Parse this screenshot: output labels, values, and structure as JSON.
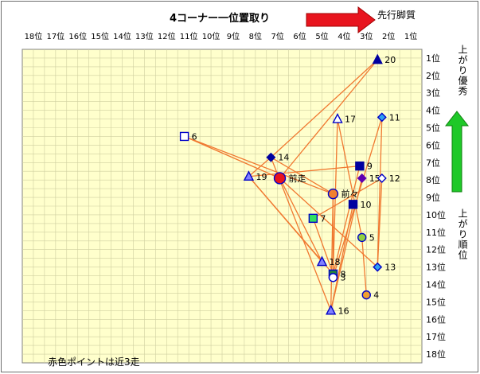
{
  "chart_data": {
    "type": "scatter",
    "title": "4コーナー一位置取り",
    "xlabel": "先行脚質",
    "ylabel_top": "上がり優秀",
    "ylabel_bottom": "上がり順位",
    "note": "赤色ポイントは近3走",
    "x_ticks": [
      "18位",
      "17位",
      "16位",
      "15位",
      "14位",
      "13位",
      "12位",
      "11位",
      "10位",
      "9位",
      "8位",
      "7位",
      "6位",
      "5位",
      "4位",
      "3位",
      "2位",
      "1位"
    ],
    "y_ticks": [
      "1位",
      "2位",
      "3位",
      "4位",
      "5位",
      "6位",
      "7位",
      "8位",
      "9位",
      "10位",
      "11位",
      "12位",
      "13位",
      "14位",
      "15位",
      "16位",
      "17位",
      "18位"
    ],
    "xlim": [
      18.5,
      0.5
    ],
    "ylim": [
      0.5,
      18.5
    ],
    "colors": {
      "plot_bg": "#ffffcc",
      "grid": "#cfcfa0",
      "line": "#f07830",
      "arrow_red": "#e8141e",
      "arrow_green": "#1ec828"
    },
    "points": [
      {
        "label": "前走",
        "x": 6.9,
        "y": 7.9,
        "marker": "circle",
        "fill": "#e8141e",
        "stroke": "#0000c8",
        "r": 7
      },
      {
        "label": "前々",
        "x": 4.5,
        "y": 8.8,
        "marker": "circle",
        "fill": "#f08030",
        "stroke": "#0000c8",
        "r": 6
      },
      {
        "label": "20",
        "x": 2.5,
        "y": 1.1,
        "marker": "triangle",
        "fill": "#0000a0",
        "stroke": "#0000a0"
      },
      {
        "label": "11",
        "x": 2.3,
        "y": 4.4,
        "marker": "diamond",
        "fill": "#30a0f0",
        "stroke": "#0000c8"
      },
      {
        "label": "17",
        "x": 4.3,
        "y": 4.5,
        "marker": "triangle",
        "fill": "#ffffff",
        "stroke": "#0000c8"
      },
      {
        "label": "6",
        "x": 11.2,
        "y": 5.5,
        "marker": "square",
        "fill": "#ffffff",
        "stroke": "#0000c8"
      },
      {
        "label": "14",
        "x": 7.3,
        "y": 6.7,
        "marker": "diamond",
        "fill": "#0000a0",
        "stroke": "#0000a0"
      },
      {
        "label": "9",
        "x": 3.3,
        "y": 7.2,
        "marker": "square",
        "fill": "#0000a0",
        "stroke": "#0000a0"
      },
      {
        "label": "19",
        "x": 8.3,
        "y": 7.8,
        "marker": "triangle",
        "fill": "#8080ff",
        "stroke": "#0000c8"
      },
      {
        "label": "15",
        "x": 3.2,
        "y": 7.9,
        "marker": "diamond",
        "fill": "#6000b0",
        "stroke": "#6000b0"
      },
      {
        "label": "12",
        "x": 2.3,
        "y": 7.9,
        "marker": "diamond",
        "fill": "#ffffff",
        "stroke": "#0000c8"
      },
      {
        "label": "10",
        "x": 3.6,
        "y": 9.4,
        "marker": "square",
        "fill": "#0000a0",
        "stroke": "#0000a0"
      },
      {
        "label": "7",
        "x": 5.4,
        "y": 10.2,
        "marker": "square",
        "fill": "#30e060",
        "stroke": "#0000c8"
      },
      {
        "label": "5",
        "x": 3.2,
        "y": 11.3,
        "marker": "circle",
        "fill": "#90d040",
        "stroke": "#0000c8",
        "r": 5
      },
      {
        "label": "18",
        "x": 5.0,
        "y": 12.7,
        "marker": "triangle",
        "fill": "#8080ff",
        "stroke": "#0000c8"
      },
      {
        "label": "13",
        "x": 2.5,
        "y": 13.0,
        "marker": "diamond",
        "fill": "#30a0f0",
        "stroke": "#0000c8"
      },
      {
        "label": "8",
        "x": 4.5,
        "y": 13.4,
        "marker": "square",
        "fill": "#208040",
        "stroke": "#0000c8"
      },
      {
        "label": "3",
        "x": 4.5,
        "y": 13.6,
        "marker": "circle",
        "fill": "#ffffff",
        "stroke": "#0000c8",
        "r": 5
      },
      {
        "label": "4",
        "x": 3.0,
        "y": 14.6,
        "marker": "circle",
        "fill": "#f0a030",
        "stroke": "#0000c8",
        "r": 5
      },
      {
        "label": "16",
        "x": 4.6,
        "y": 15.5,
        "marker": "triangle",
        "fill": "#8080ff",
        "stroke": "#0000c8"
      }
    ],
    "connections": [
      [
        "前走",
        "20"
      ],
      [
        "前走",
        "6"
      ],
      [
        "前走",
        "18"
      ],
      [
        "前走",
        "13"
      ],
      [
        "前々",
        "14"
      ],
      [
        "前々",
        "6"
      ],
      [
        "前々",
        "16"
      ],
      [
        "前々",
        "3"
      ],
      [
        "14",
        "20"
      ],
      [
        "14",
        "19"
      ],
      [
        "14",
        "16"
      ],
      [
        "19",
        "9"
      ],
      [
        "19",
        "18"
      ],
      [
        "19",
        "8"
      ],
      [
        "11",
        "13"
      ],
      [
        "11",
        "3"
      ],
      [
        "17",
        "8"
      ],
      [
        "17",
        "5"
      ],
      [
        "12",
        "13"
      ],
      [
        "12",
        "7"
      ],
      [
        "7",
        "8"
      ],
      [
        "5",
        "4"
      ],
      [
        "15",
        "16"
      ],
      [
        "10",
        "16"
      ],
      [
        "9",
        "8"
      ]
    ]
  }
}
